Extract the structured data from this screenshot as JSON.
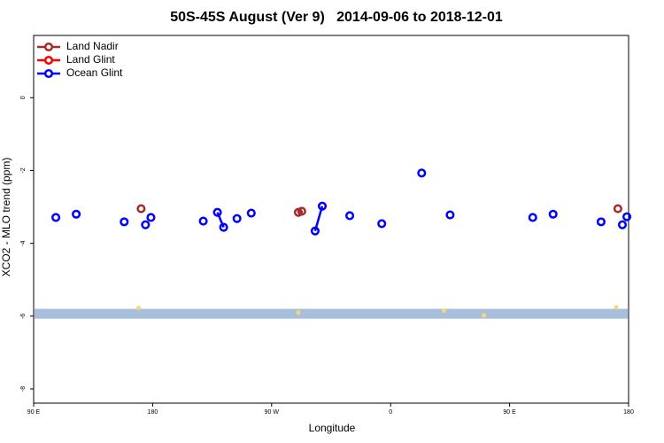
{
  "chart_data": {
    "type": "line",
    "title": "50S-45S August (Ver 9)   2014-09-06 to 2018-12-01",
    "x_label": "Longitude",
    "y_label": "XCO2 - MLO trend (ppm)",
    "xlim": [
      90,
      540
    ],
    "ylim": [
      -8.39,
      1.71
    ],
    "xticks": [
      {
        "value": 90,
        "label": "90 E"
      },
      180,
      {
        "value": 270,
        "label": "90 W"
      },
      {
        "value": 360,
        "label": "0"
      },
      {
        "value": 450,
        "label": "90 E"
      },
      {
        "value": 540,
        "label": "180"
      }
    ],
    "yticks": [
      0,
      -2,
      -4,
      -6,
      -8
    ],
    "legend": "top-left",
    "series": [
      {
        "name": "Land Nadir",
        "color": "#a52a2a",
        "x": [
          171.3,
          null,
          290.2,
          292.8,
          null,
          531.9
        ],
        "values": [
          -3.05,
          null,
          -3.15,
          -3.12,
          null,
          -3.05
        ]
      },
      {
        "name": "Land Glint",
        "color": "#ff0000",
        "x": [],
        "values": []
      },
      {
        "name": "Ocean Glint",
        "color": "#0000ff",
        "x": [
          106.8,
          null,
          122.2,
          null,
          158.5,
          null,
          174.6,
          null,
          178.7,
          null,
          218.3,
          null,
          229.0,
          233.7,
          null,
          243.8,
          null,
          254.6,
          null,
          302.9,
          308.3,
          null,
          329.1,
          null,
          353.3,
          null,
          383.5,
          null,
          405.0,
          null,
          467.5,
          null,
          482.9,
          null,
          519.2,
          null,
          535.3,
          null,
          538.7
        ],
        "values": [
          -3.29,
          null,
          -3.2,
          null,
          -3.41,
          null,
          -3.49,
          null,
          -3.29,
          null,
          -3.39,
          null,
          -3.15,
          -3.56,
          null,
          -3.32,
          null,
          -3.17,
          null,
          -3.66,
          -2.98,
          null,
          -3.24,
          null,
          -3.46,
          null,
          -2.07,
          null,
          -3.22,
          null,
          -3.29,
          null,
          -3.2,
          null,
          -3.41,
          null,
          -3.49,
          null,
          -3.27
        ]
      }
    ],
    "band": {
      "color": "#a8bfdc",
      "ylim": [
        -6.07,
        -5.8
      ]
    },
    "markers": {
      "color": "#f7d774",
      "x": [
        169.3,
        290.2,
        400.3,
        430.5,
        530.6
      ],
      "values": [
        -5.78,
        -5.9,
        -5.85,
        -5.98,
        -5.76
      ]
    }
  }
}
